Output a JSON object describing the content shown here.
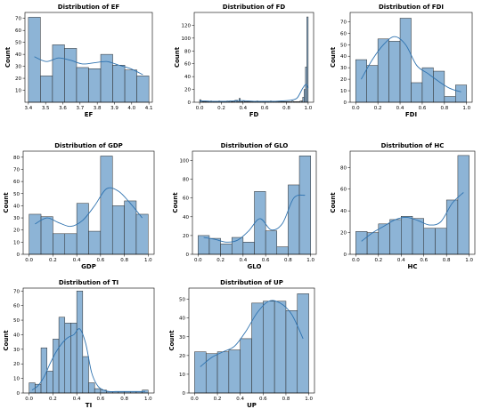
{
  "colors": {
    "bar_fill": "#8db4d6",
    "bar_edge": "#2b2b2b",
    "kde_line": "#2f73b0"
  },
  "chart_data": [
    {
      "type": "bar",
      "title": "Distribution of EF",
      "xlabel": "EF",
      "ylabel": "Count",
      "bin_edges": [
        3.4,
        3.47,
        3.54,
        3.61,
        3.68,
        3.75,
        3.82,
        3.89,
        3.96,
        4.03,
        4.1
      ],
      "values": [
        71,
        22,
        48,
        45,
        29,
        28,
        40,
        31,
        27,
        22
      ],
      "kde": [
        38,
        34,
        37,
        35,
        32,
        33,
        34,
        31,
        28,
        23
      ],
      "xlim": [
        3.38,
        4.12
      ],
      "ylim": [
        0,
        75
      ],
      "xticks": [
        3.4,
        3.5,
        3.6,
        3.7,
        3.8,
        3.9,
        4.0,
        4.1
      ],
      "xtick_labels": [
        "3.4",
        "3.5",
        "3.6",
        "3.7",
        "3.8",
        "3.9",
        "4.0",
        "4.1"
      ],
      "yticks": [
        10,
        20,
        30,
        40,
        50,
        60,
        70
      ],
      "ytick_labels": [
        "10",
        "20",
        "30",
        "40",
        "50",
        "60",
        "70"
      ]
    },
    {
      "type": "bar",
      "title": "Distribution of FD",
      "xlabel": "FD",
      "ylabel": "Count",
      "bin_edges": [
        0,
        0.0125,
        0.025,
        0.0375,
        0.05,
        0.0625,
        0.075,
        0.0875,
        0.1,
        0.1125,
        0.125,
        0.1375,
        0.15,
        0.1625,
        0.175,
        0.1875,
        0.2,
        0.2125,
        0.225,
        0.2375,
        0.25,
        0.2625,
        0.275,
        0.2875,
        0.3,
        0.3125,
        0.325,
        0.3375,
        0.35,
        0.3625,
        0.375,
        0.3875,
        0.4,
        0.4125,
        0.425,
        0.4375,
        0.45,
        0.4625,
        0.475,
        0.4875,
        0.5,
        0.5125,
        0.525,
        0.5375,
        0.55,
        0.5625,
        0.575,
        0.5875,
        0.6,
        0.6125,
        0.625,
        0.6375,
        0.65,
        0.6625,
        0.675,
        0.6875,
        0.7,
        0.7125,
        0.725,
        0.7375,
        0.75,
        0.7625,
        0.775,
        0.7875,
        0.8,
        0.8125,
        0.825,
        0.8375,
        0.85,
        0.8625,
        0.875,
        0.8875,
        0.9,
        0.9125,
        0.925,
        0.9375,
        0.95,
        0.9625,
        0.975,
        0.9875,
        1.0
      ],
      "values": [
        4,
        2,
        1,
        1,
        1,
        1,
        1,
        1,
        2,
        1,
        1,
        1,
        1,
        1,
        2,
        1,
        1,
        1,
        1,
        1,
        2,
        1,
        2,
        1,
        1,
        2,
        3,
        3,
        1,
        6,
        1,
        1,
        2,
        1,
        1,
        1,
        1,
        1,
        1,
        1,
        1,
        1,
        2,
        1,
        1,
        1,
        1,
        1,
        1,
        1,
        1,
        1,
        2,
        1,
        1,
        1,
        1,
        1,
        1,
        1,
        1,
        1,
        1,
        1,
        1,
        1,
        1,
        1,
        2,
        1,
        1,
        1,
        1,
        1,
        2,
        2,
        8,
        20,
        55,
        133
      ],
      "kde_x": [
        0,
        0.05,
        0.1,
        0.15,
        0.2,
        0.25,
        0.3,
        0.35,
        0.4,
        0.45,
        0.5,
        0.55,
        0.6,
        0.65,
        0.7,
        0.75,
        0.8,
        0.85,
        0.9,
        0.95,
        0.98,
        1.0
      ],
      "kde": [
        2,
        2,
        1.5,
        1.5,
        1.5,
        1.5,
        2,
        2.5,
        2.5,
        2,
        1.5,
        1.5,
        1.5,
        1.5,
        1.5,
        2,
        2.5,
        3.5,
        7,
        22,
        28,
        22
      ],
      "xlim": [
        -0.05,
        1.05
      ],
      "ylim": [
        0,
        140
      ],
      "xticks": [
        0,
        0.2,
        0.4,
        0.6,
        0.8,
        1.0
      ],
      "xtick_labels": [
        "0.0",
        "0.2",
        "0.4",
        "0.6",
        "0.8",
        "1.0"
      ],
      "yticks": [
        0,
        20,
        40,
        60,
        80,
        100,
        120
      ],
      "ytick_labels": [
        "0",
        "20",
        "40",
        "60",
        "80",
        "100",
        "120"
      ]
    },
    {
      "type": "bar",
      "title": "Distribution of FDI",
      "xlabel": "FDI",
      "ylabel": "Count",
      "bin_edges": [
        0,
        0.1,
        0.2,
        0.3,
        0.4,
        0.5,
        0.6,
        0.7,
        0.8,
        0.9,
        1.0
      ],
      "values": [
        37,
        32,
        55,
        53,
        73,
        17,
        30,
        27,
        5,
        15
      ],
      "kde": [
        20,
        37,
        50,
        57,
        50,
        32,
        25,
        18,
        12,
        9
      ],
      "xlim": [
        -0.05,
        1.05
      ],
      "ylim": [
        0,
        78
      ],
      "xticks": [
        0,
        0.2,
        0.4,
        0.6,
        0.8,
        1.0
      ],
      "xtick_labels": [
        "0.0",
        "0.2",
        "0.4",
        "0.6",
        "0.8",
        "1.0"
      ],
      "yticks": [
        0,
        10,
        20,
        30,
        40,
        50,
        60,
        70
      ],
      "ytick_labels": [
        "0",
        "10",
        "20",
        "30",
        "40",
        "50",
        "60",
        "70"
      ]
    },
    {
      "type": "bar",
      "title": "Distribution of GDP",
      "xlabel": "GDP",
      "ylabel": "Count",
      "bin_edges": [
        0,
        0.1,
        0.2,
        0.3,
        0.4,
        0.5,
        0.6,
        0.7,
        0.8,
        0.9,
        1.0
      ],
      "values": [
        33,
        31,
        17,
        17,
        42,
        19,
        81,
        40,
        44,
        33
      ],
      "kde": [
        25,
        30,
        26,
        23,
        28,
        40,
        54,
        52,
        42,
        30
      ],
      "xlim": [
        -0.05,
        1.05
      ],
      "ylim": [
        0,
        85
      ],
      "xticks": [
        0,
        0.2,
        0.4,
        0.6,
        0.8,
        1.0
      ],
      "xtick_labels": [
        "0.0",
        "0.2",
        "0.4",
        "0.6",
        "0.8",
        "1.0"
      ],
      "yticks": [
        0,
        10,
        20,
        30,
        40,
        50,
        60,
        70,
        80
      ],
      "ytick_labels": [
        "0",
        "10",
        "20",
        "30",
        "40",
        "50",
        "60",
        "70",
        "80"
      ]
    },
    {
      "type": "bar",
      "title": "Distribution of GLO",
      "xlabel": "GLO",
      "ylabel": "Count",
      "bin_edges": [
        0,
        0.1,
        0.2,
        0.3,
        0.4,
        0.5,
        0.6,
        0.7,
        0.8,
        0.9,
        1.0
      ],
      "values": [
        20,
        17,
        11,
        18,
        13,
        67,
        25,
        8,
        74,
        105
      ],
      "kde": [
        18,
        16,
        13,
        15,
        25,
        38,
        26,
        33,
        60,
        63
      ],
      "xlim": [
        -0.05,
        1.05
      ],
      "ylim": [
        0,
        110
      ],
      "xticks": [
        0,
        0.2,
        0.4,
        0.6,
        0.8,
        1.0
      ],
      "xtick_labels": [
        "0.0",
        "0.2",
        "0.4",
        "0.6",
        "0.8",
        "1.0"
      ],
      "yticks": [
        0,
        20,
        40,
        60,
        80,
        100
      ],
      "ytick_labels": [
        "0",
        "20",
        "40",
        "60",
        "80",
        "100"
      ]
    },
    {
      "type": "bar",
      "title": "Distribution of HC",
      "xlabel": "HC",
      "ylabel": "Count",
      "bin_edges": [
        0,
        0.1,
        0.2,
        0.3,
        0.4,
        0.5,
        0.6,
        0.7,
        0.8,
        0.9,
        1.0
      ],
      "values": [
        21,
        20,
        28,
        32,
        35,
        33,
        24,
        24,
        50,
        91
      ],
      "kde": [
        12,
        20,
        26,
        32,
        34,
        31,
        27,
        30,
        47,
        57
      ],
      "xlim": [
        -0.05,
        1.05
      ],
      "ylim": [
        0,
        95
      ],
      "xticks": [
        0,
        0.2,
        0.4,
        0.6,
        0.8,
        1.0
      ],
      "xtick_labels": [
        "0.0",
        "0.2",
        "0.4",
        "0.6",
        "0.8",
        "1.0"
      ],
      "yticks": [
        0,
        20,
        40,
        60,
        80
      ],
      "ytick_labels": [
        "0",
        "20",
        "40",
        "60",
        "80"
      ]
    },
    {
      "type": "bar",
      "title": "Distribution of TI",
      "xlabel": "TI",
      "ylabel": "Count",
      "bin_edges": [
        0,
        0.05,
        0.1,
        0.15,
        0.2,
        0.25,
        0.3,
        0.35,
        0.4,
        0.45,
        0.5,
        0.55,
        0.6,
        0.65,
        0.7,
        0.75,
        0.8,
        0.85,
        0.9,
        0.95,
        1.0
      ],
      "values": [
        7,
        6,
        31,
        15,
        37,
        52,
        48,
        48,
        70,
        25,
        7,
        3,
        2,
        1,
        1,
        1,
        1,
        1,
        1,
        2
      ],
      "kde": [
        2,
        5,
        11,
        20,
        28,
        34,
        38,
        40,
        44,
        34,
        14,
        5,
        2,
        1,
        1,
        1,
        1,
        1,
        1,
        1
      ],
      "xlim": [
        -0.05,
        1.05
      ],
      "ylim": [
        0,
        72
      ],
      "xticks": [
        0,
        0.2,
        0.4,
        0.6,
        0.8,
        1.0
      ],
      "xtick_labels": [
        "0.0",
        "0.2",
        "0.4",
        "0.6",
        "0.8",
        "1.0"
      ],
      "yticks": [
        0,
        10,
        20,
        30,
        40,
        50,
        60,
        70
      ],
      "ytick_labels": [
        "0",
        "10",
        "20",
        "30",
        "40",
        "50",
        "60",
        "70"
      ]
    },
    {
      "type": "bar",
      "title": "Distribution of UP",
      "xlabel": "UP",
      "ylabel": "Count",
      "bin_edges": [
        0,
        0.1,
        0.2,
        0.3,
        0.4,
        0.5,
        0.6,
        0.7,
        0.8,
        0.9,
        1.0
      ],
      "values": [
        22,
        21,
        22,
        23,
        29,
        48,
        49,
        49,
        44,
        53
      ],
      "kde": [
        14,
        19,
        22,
        25,
        33,
        43,
        49,
        48,
        42,
        29
      ],
      "xlim": [
        -0.05,
        1.05
      ],
      "ylim": [
        0,
        56
      ],
      "xticks": [
        0,
        0.2,
        0.4,
        0.6,
        0.8,
        1.0
      ],
      "xtick_labels": [
        "0.0",
        "0.2",
        "0.4",
        "0.6",
        "0.8",
        "1.0"
      ],
      "yticks": [
        0,
        10,
        20,
        30,
        40,
        50
      ],
      "ytick_labels": [
        "0",
        "10",
        "20",
        "30",
        "40",
        "50"
      ]
    }
  ]
}
